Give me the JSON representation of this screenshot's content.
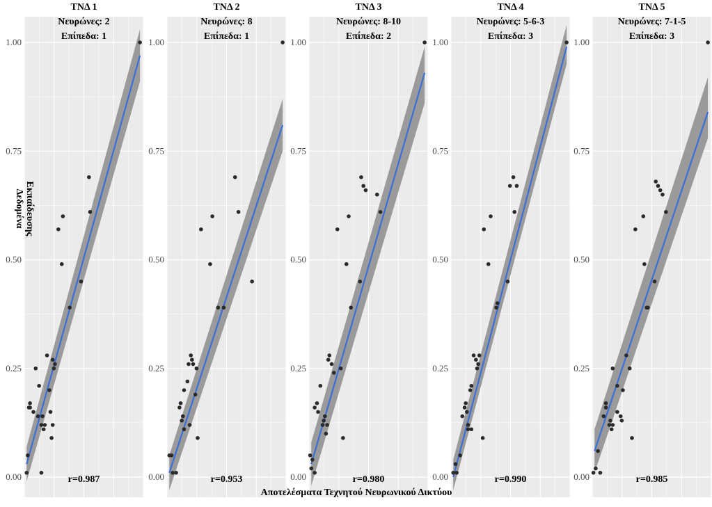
{
  "chart_data": {
    "type": "scatter",
    "xlabel": "Αποτελέσματα Τεχνητού Νευρωνικού Δικτύου",
    "ylabel": [
      "Δεδομένα",
      "Εκπαίδευσης"
    ],
    "ylim": [
      0,
      1
    ],
    "yticks": [
      0.0,
      0.25,
      0.5,
      0.75,
      1.0
    ],
    "ytick_labels": [
      "0.00",
      "0.25",
      "0.50",
      "0.75",
      "1.00"
    ],
    "grid": true,
    "background": "#ebebeb",
    "colors": {
      "points": "#2a2a2a",
      "fit_line": "#3b6fd6",
      "ribbon": "#8c8c8c",
      "grid": "#ffffff"
    },
    "panels": [
      {
        "title": [
          "ΤΝΔ 1",
          "Νευρώνες: 2",
          "Επίπεδα: 1"
        ],
        "r_label": "r=0.987",
        "xlim": [
          0,
          1.05
        ],
        "fit": {
          "x0": 0.02,
          "y0": 0.03,
          "x1": 1.02,
          "y1": 0.97
        },
        "band": {
          "lo0": -0.01,
          "hi0": 0.07,
          "lo1": 0.91,
          "hi1": 1.03
        },
        "points": [
          [
            0.02,
            0.01
          ],
          [
            0.03,
            0.05
          ],
          [
            0.04,
            0.16
          ],
          [
            0.05,
            0.17
          ],
          [
            0.05,
            0.16
          ],
          [
            0.08,
            0.15
          ],
          [
            0.1,
            0.25
          ],
          [
            0.12,
            0.14
          ],
          [
            0.13,
            0.21
          ],
          [
            0.15,
            0.12
          ],
          [
            0.16,
            0.14
          ],
          [
            0.17,
            0.11
          ],
          [
            0.15,
            0.01
          ],
          [
            0.18,
            0.12
          ],
          [
            0.2,
            0.28
          ],
          [
            0.22,
            0.2
          ],
          [
            0.23,
            0.15
          ],
          [
            0.24,
            0.09
          ],
          [
            0.25,
            0.12
          ],
          [
            0.25,
            0.27
          ],
          [
            0.26,
            0.25
          ],
          [
            0.27,
            0.26
          ],
          [
            0.3,
            0.57
          ],
          [
            0.33,
            0.49
          ],
          [
            0.34,
            0.6
          ],
          [
            0.4,
            0.39
          ],
          [
            0.5,
            0.45
          ],
          [
            0.57,
            0.69
          ],
          [
            0.58,
            0.61
          ],
          [
            1.02,
            1.0
          ]
        ]
      },
      {
        "title": [
          "ΤΝΔ 2",
          "Νευρώνες: 8",
          "Επίπεδα: 1"
        ],
        "r_label": "r=0.953",
        "xlim": [
          0,
          1.05
        ],
        "fit": {
          "x0": 0.02,
          "y0": 0.01,
          "x1": 1.02,
          "y1": 0.81
        },
        "band": {
          "lo0": -0.03,
          "hi0": 0.05,
          "lo1": 0.75,
          "hi1": 0.87
        },
        "points": [
          [
            0.02,
            0.05
          ],
          [
            0.04,
            0.05
          ],
          [
            0.05,
            0.01
          ],
          [
            0.08,
            0.01
          ],
          [
            0.11,
            0.16
          ],
          [
            0.12,
            0.17
          ],
          [
            0.13,
            0.13
          ],
          [
            0.14,
            0.14
          ],
          [
            0.15,
            0.11
          ],
          [
            0.15,
            0.2
          ],
          [
            0.18,
            0.22
          ],
          [
            0.19,
            0.26
          ],
          [
            0.2,
            0.12
          ],
          [
            0.21,
            0.28
          ],
          [
            0.22,
            0.27
          ],
          [
            0.23,
            0.26
          ],
          [
            0.25,
            0.19
          ],
          [
            0.26,
            0.25
          ],
          [
            0.27,
            0.09
          ],
          [
            0.3,
            0.57
          ],
          [
            0.38,
            0.49
          ],
          [
            0.4,
            0.6
          ],
          [
            0.45,
            0.39
          ],
          [
            0.5,
            0.39
          ],
          [
            0.6,
            0.69
          ],
          [
            0.63,
            0.61
          ],
          [
            0.75,
            0.45
          ],
          [
            1.02,
            1.0
          ]
        ]
      },
      {
        "title": [
          "ΤΝΔ 3",
          "Νευρώνες: 8-10",
          "Επίπεδα: 2"
        ],
        "r_label": "r=0.980",
        "xlim": [
          0,
          1.05
        ],
        "fit": {
          "x0": 0.02,
          "y0": 0.03,
          "x1": 1.02,
          "y1": 0.93
        },
        "band": {
          "lo0": -0.02,
          "hi0": 0.08,
          "lo1": 0.86,
          "hi1": 0.99
        },
        "points": [
          [
            0.01,
            0.05
          ],
          [
            0.02,
            0.02
          ],
          [
            0.03,
            0.04
          ],
          [
            0.05,
            0.01
          ],
          [
            0.05,
            0.16
          ],
          [
            0.07,
            0.17
          ],
          [
            0.08,
            0.15
          ],
          [
            0.1,
            0.21
          ],
          [
            0.12,
            0.12
          ],
          [
            0.13,
            0.13
          ],
          [
            0.14,
            0.14
          ],
          [
            0.15,
            0.1
          ],
          [
            0.16,
            0.12
          ],
          [
            0.17,
            0.27
          ],
          [
            0.18,
            0.28
          ],
          [
            0.2,
            0.26
          ],
          [
            0.22,
            0.24
          ],
          [
            0.25,
            0.57
          ],
          [
            0.28,
            0.25
          ],
          [
            0.3,
            0.09
          ],
          [
            0.33,
            0.49
          ],
          [
            0.35,
            0.6
          ],
          [
            0.37,
            0.39
          ],
          [
            0.45,
            0.45
          ],
          [
            0.46,
            0.69
          ],
          [
            0.48,
            0.67
          ],
          [
            0.5,
            0.66
          ],
          [
            0.6,
            0.65
          ],
          [
            0.63,
            0.61
          ],
          [
            1.02,
            1.0
          ]
        ]
      },
      {
        "title": [
          "ΤΝΔ 4",
          "Νευρώνες: 5-6-3",
          "Επίπεδα: 3"
        ],
        "r_label": "r=0.990",
        "xlim": [
          0,
          1.05
        ],
        "fit": {
          "x0": 0.02,
          "y0": 0.0,
          "x1": 1.02,
          "y1": 0.99
        },
        "band": {
          "lo0": -0.03,
          "hi0": 0.04,
          "lo1": 0.95,
          "hi1": 1.04
        },
        "points": [
          [
            0.02,
            0.01
          ],
          [
            0.04,
            0.03
          ],
          [
            0.05,
            0.01
          ],
          [
            0.08,
            0.05
          ],
          [
            0.1,
            0.14
          ],
          [
            0.12,
            0.16
          ],
          [
            0.13,
            0.17
          ],
          [
            0.14,
            0.15
          ],
          [
            0.15,
            0.12
          ],
          [
            0.15,
            0.11
          ],
          [
            0.17,
            0.2
          ],
          [
            0.18,
            0.21
          ],
          [
            0.18,
            0.11
          ],
          [
            0.2,
            0.28
          ],
          [
            0.22,
            0.27
          ],
          [
            0.23,
            0.25
          ],
          [
            0.24,
            0.26
          ],
          [
            0.25,
            0.28
          ],
          [
            0.28,
            0.09
          ],
          [
            0.29,
            0.57
          ],
          [
            0.33,
            0.49
          ],
          [
            0.35,
            0.6
          ],
          [
            0.4,
            0.39
          ],
          [
            0.41,
            0.4
          ],
          [
            0.5,
            0.45
          ],
          [
            0.52,
            0.67
          ],
          [
            0.55,
            0.69
          ],
          [
            0.56,
            0.61
          ],
          [
            0.58,
            0.67
          ],
          [
            1.02,
            1.0
          ]
        ]
      },
      {
        "title": [
          "ΤΝΔ 5",
          "Νευρώνες: 7-1-5",
          "Επίπεδα: 3"
        ],
        "r_label": "r=0.985",
        "xlim": [
          0,
          1.05
        ],
        "fit": {
          "x0": 0.02,
          "y0": 0.06,
          "x1": 1.02,
          "y1": 0.84
        },
        "band": {
          "lo0": 0.01,
          "hi0": 0.11,
          "lo1": 0.78,
          "hi1": 0.92
        },
        "points": [
          [
            0.01,
            0.01
          ],
          [
            0.03,
            0.02
          ],
          [
            0.05,
            0.06
          ],
          [
            0.07,
            0.01
          ],
          [
            0.1,
            0.14
          ],
          [
            0.12,
            0.16
          ],
          [
            0.12,
            0.17
          ],
          [
            0.15,
            0.12
          ],
          [
            0.16,
            0.13
          ],
          [
            0.17,
            0.11
          ],
          [
            0.18,
            0.12
          ],
          [
            0.18,
            0.25
          ],
          [
            0.22,
            0.21
          ],
          [
            0.22,
            0.15
          ],
          [
            0.25,
            0.14
          ],
          [
            0.26,
            0.13
          ],
          [
            0.27,
            0.2
          ],
          [
            0.3,
            0.28
          ],
          [
            0.33,
            0.25
          ],
          [
            0.35,
            0.09
          ],
          [
            0.38,
            0.57
          ],
          [
            0.45,
            0.6
          ],
          [
            0.46,
            0.49
          ],
          [
            0.48,
            0.39
          ],
          [
            0.49,
            0.39
          ],
          [
            0.55,
            0.45
          ],
          [
            0.56,
            0.68
          ],
          [
            0.58,
            0.67
          ],
          [
            0.6,
            0.66
          ],
          [
            0.62,
            0.65
          ],
          [
            0.65,
            0.61
          ],
          [
            1.02,
            1.0
          ]
        ]
      }
    ]
  }
}
